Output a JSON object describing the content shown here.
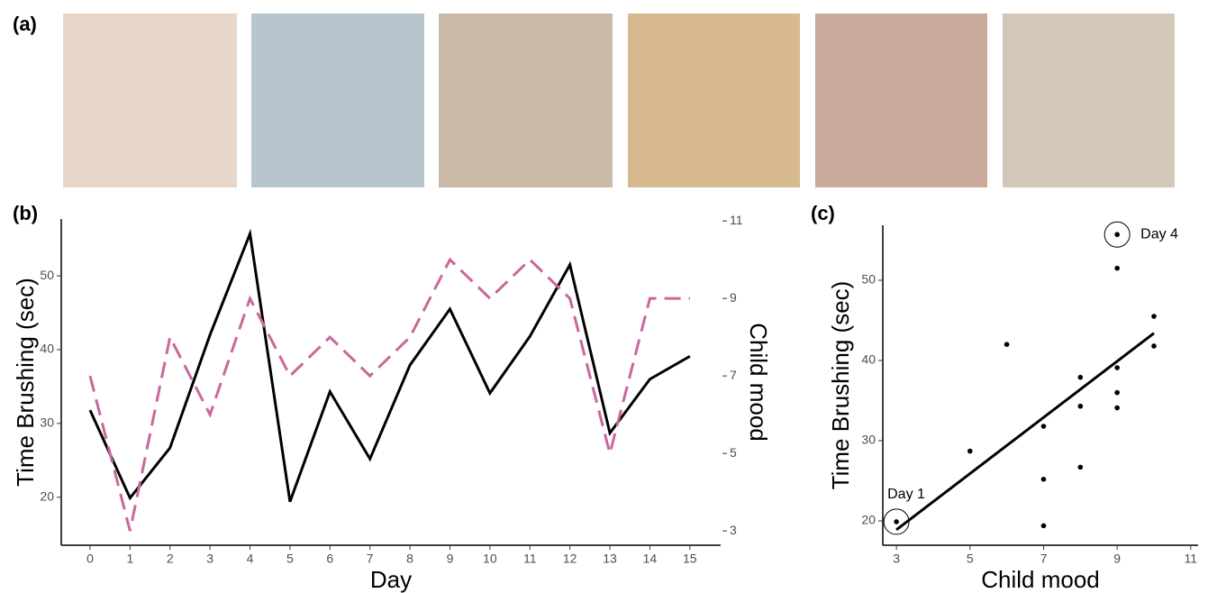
{
  "photo_panel": {
    "label": "(a)"
  },
  "chart_data": [
    {
      "type": "line",
      "panel_label": "(b)",
      "x_label": "Day",
      "y_label": "Time Brushing (sec)",
      "y2_label": "Child mood",
      "y2_label_color": "#c9679e",
      "x": [
        0,
        1,
        2,
        3,
        4,
        5,
        6,
        7,
        8,
        9,
        10,
        11,
        12,
        13,
        14,
        15
      ],
      "series": [
        {
          "color": "#000000",
          "dashed": false,
          "values": [
            31.8,
            19.9,
            26.7,
            42,
            55.7,
            19.4,
            34.3,
            25.2,
            37.9,
            45.5,
            34.1,
            41.8,
            51.5,
            28.7,
            36,
            39.1
          ]
        },
        {
          "color": "#c9679e",
          "dashed": true,
          "axis": "y2",
          "values": [
            7,
            3,
            8,
            6,
            9,
            7,
            8,
            7,
            8,
            10,
            9,
            10,
            9,
            5,
            9,
            9
          ]
        }
      ],
      "xlim": [
        -0.72,
        15.77
      ],
      "xticks": [
        0,
        1,
        2,
        3,
        4,
        5,
        6,
        7,
        8,
        9,
        10,
        11,
        12,
        13,
        14,
        15
      ],
      "ylim": [
        13.5,
        57.7
      ],
      "yticks": [
        20,
        30,
        40,
        50
      ],
      "y2lim": [
        2.63,
        11.05
      ],
      "y2ticks": [
        3,
        5,
        7,
        9,
        11
      ],
      "grid": false
    },
    {
      "type": "scatter",
      "panel_label": "(c)",
      "x_label": "Child mood",
      "x_label_color": "#c9679e",
      "y_label": "Time Brushing (sec)",
      "x": [
        7,
        3,
        8,
        6,
        9,
        7,
        8,
        7,
        8,
        10,
        9,
        10,
        9,
        5,
        9,
        9
      ],
      "values": [
        31.8,
        19.9,
        26.7,
        42,
        55.7,
        19.4,
        34.3,
        25.2,
        37.9,
        45.5,
        34.1,
        41.8,
        51.5,
        28.7,
        36,
        39.1
      ],
      "color": "#000000",
      "trend_line": {
        "x": [
          3,
          10
        ],
        "values": [
          18.9,
          43.4
        ]
      },
      "annotations": [
        {
          "text": "Day 1",
          "x": 3,
          "y": 19.9
        },
        {
          "text": "Day 4",
          "x": 9,
          "y": 55.7
        }
      ],
      "xlim": [
        2.63,
        11.2
      ],
      "xticks": [
        3,
        5,
        7,
        9,
        11
      ],
      "ylim": [
        16.97,
        56.85
      ],
      "yticks": [
        20,
        30,
        40,
        50
      ],
      "grid": false
    }
  ]
}
